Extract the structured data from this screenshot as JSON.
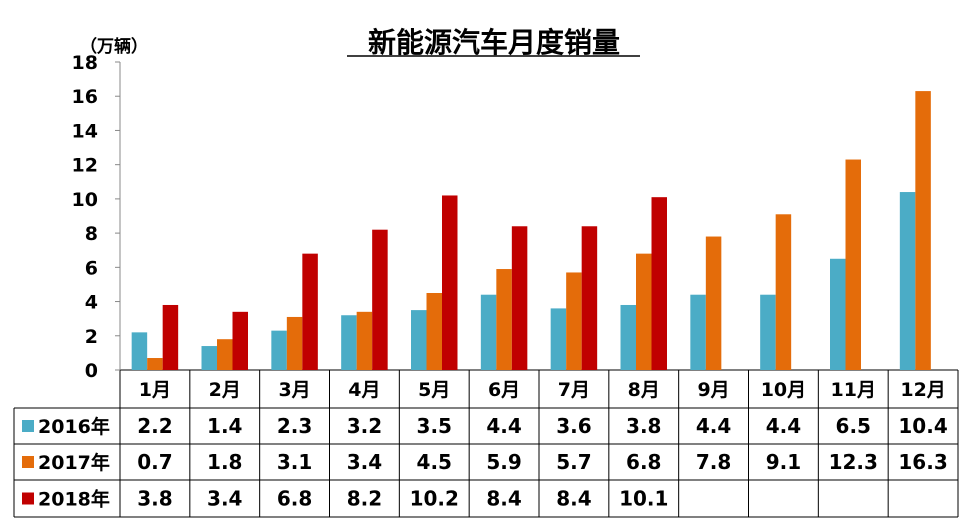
{
  "chart_data": {
    "type": "bar",
    "title": "新能源汽车月度销量",
    "unit_label": "（万辆）",
    "ylim": [
      0,
      18
    ],
    "yticks": [
      "0",
      "2",
      "4",
      "6",
      "8",
      "10",
      "12",
      "14",
      "16",
      "18"
    ],
    "grid": false,
    "legend": "data table below chart",
    "categories": [
      "1月",
      "2月",
      "3月",
      "4月",
      "5月",
      "6月",
      "7月",
      "8月",
      "9月",
      "10月",
      "11月",
      "12月"
    ],
    "series": [
      {
        "name": "2016年",
        "color": "#4BACC6",
        "values": [
          2.2,
          1.4,
          2.3,
          3.2,
          3.5,
          4.4,
          3.6,
          3.8,
          4.4,
          4.4,
          6.5,
          10.4
        ],
        "labels": [
          "2.2",
          "1.4",
          "2.3",
          "3.2",
          "3.5",
          "4.4",
          "3.6",
          "3.8",
          "4.4",
          "4.4",
          "6.5",
          "10.4"
        ]
      },
      {
        "name": "2017年",
        "color": "#E46C0A",
        "values": [
          0.7,
          1.8,
          3.1,
          3.4,
          4.5,
          5.9,
          5.7,
          6.8,
          7.8,
          9.1,
          12.3,
          16.3
        ],
        "labels": [
          "0.7",
          "1.8",
          "3.1",
          "3.4",
          "4.5",
          "5.9",
          "5.7",
          "6.8",
          "7.8",
          "9.1",
          "12.3",
          "16.3"
        ]
      },
      {
        "name": "2018年",
        "color": "#C00000",
        "values": [
          3.8,
          3.4,
          6.8,
          8.2,
          10.2,
          8.4,
          8.4,
          10.1,
          null,
          null,
          null,
          null
        ],
        "labels": [
          "3.8",
          "3.4",
          "6.8",
          "8.2",
          "10.2",
          "8.4",
          "8.4",
          "10.1",
          "",
          "",
          "",
          ""
        ]
      }
    ]
  }
}
